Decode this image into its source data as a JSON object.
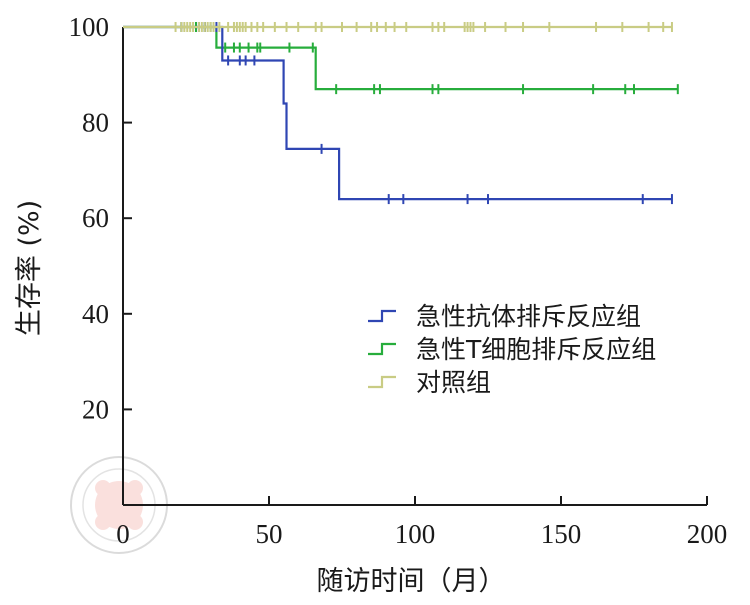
{
  "chart_data": {
    "type": "line",
    "subtype": "kaplan-meier survival curve",
    "title": "",
    "xlabel": "随访时间（月）",
    "ylabel": "生存率 (%)",
    "xlim": [
      0,
      200
    ],
    "ylim": [
      0,
      100
    ],
    "xticks": [
      "0",
      "50",
      "100",
      "150",
      "200"
    ],
    "yticks": [
      "20",
      "40",
      "60",
      "80",
      "100"
    ],
    "grid": false,
    "legend_position": "right",
    "series": [
      {
        "name": "急性抗体排斥反应组",
        "color": "#2f46b3",
        "steps": [
          [
            0,
            100
          ],
          [
            34,
            100
          ],
          [
            34,
            93
          ],
          [
            55,
            93
          ],
          [
            55,
            84
          ],
          [
            56,
            84
          ],
          [
            56,
            74.5
          ],
          [
            74,
            74.5
          ],
          [
            74,
            64
          ],
          [
            188,
            64
          ]
        ],
        "censored": [
          [
            20,
            100
          ],
          [
            26,
            100
          ],
          [
            28,
            100
          ],
          [
            32,
            100
          ],
          [
            36,
            93
          ],
          [
            40,
            93
          ],
          [
            42,
            93
          ],
          [
            45,
            93
          ],
          [
            68,
            74.5
          ],
          [
            91,
            64
          ],
          [
            96,
            64
          ],
          [
            118,
            64
          ],
          [
            125,
            64
          ],
          [
            178,
            64
          ],
          [
            188,
            64
          ]
        ]
      },
      {
        "name": "急性T细胞排斥反应组",
        "color": "#27ad3c",
        "steps": [
          [
            0,
            100
          ],
          [
            32,
            100
          ],
          [
            32,
            95.7
          ],
          [
            66,
            95.7
          ],
          [
            66,
            87
          ],
          [
            190,
            87
          ]
        ],
        "censored": [
          [
            20,
            100
          ],
          [
            25,
            100
          ],
          [
            28,
            100
          ],
          [
            30,
            100
          ],
          [
            35,
            95.7
          ],
          [
            38,
            95.7
          ],
          [
            40,
            95.7
          ],
          [
            43,
            95.7
          ],
          [
            46,
            95.7
          ],
          [
            47,
            95.7
          ],
          [
            57,
            95.7
          ],
          [
            65,
            95.7
          ],
          [
            73,
            87
          ],
          [
            86,
            87
          ],
          [
            88,
            87
          ],
          [
            106,
            87
          ],
          [
            108,
            87
          ],
          [
            137,
            87
          ],
          [
            161,
            87
          ],
          [
            172,
            87
          ],
          [
            175,
            87
          ],
          [
            190,
            87
          ]
        ]
      },
      {
        "name": "对照组",
        "color": "#c9cc84",
        "steps": [
          [
            0,
            100
          ],
          [
            188,
            100
          ]
        ],
        "censored": [
          [
            18,
            100
          ],
          [
            20,
            100
          ],
          [
            21,
            100
          ],
          [
            22,
            100
          ],
          [
            23,
            100
          ],
          [
            24,
            100
          ],
          [
            26,
            100
          ],
          [
            27,
            100
          ],
          [
            28,
            100
          ],
          [
            29,
            100
          ],
          [
            30,
            100
          ],
          [
            31,
            100
          ],
          [
            33,
            100
          ],
          [
            36,
            100
          ],
          [
            38,
            100
          ],
          [
            39,
            100
          ],
          [
            40,
            100
          ],
          [
            41,
            100
          ],
          [
            42,
            100
          ],
          [
            44,
            100
          ],
          [
            46,
            100
          ],
          [
            48,
            100
          ],
          [
            52,
            100
          ],
          [
            56,
            100
          ],
          [
            60,
            100
          ],
          [
            66,
            100
          ],
          [
            68,
            100
          ],
          [
            75,
            100
          ],
          [
            80,
            100
          ],
          [
            85,
            100
          ],
          [
            87,
            100
          ],
          [
            90,
            100
          ],
          [
            93,
            100
          ],
          [
            97,
            100
          ],
          [
            106,
            100
          ],
          [
            108,
            100
          ],
          [
            110,
            100
          ],
          [
            117,
            100
          ],
          [
            118,
            100
          ],
          [
            119,
            100
          ],
          [
            120,
            100
          ],
          [
            124,
            100
          ],
          [
            131,
            100
          ],
          [
            137,
            100
          ],
          [
            146,
            100
          ],
          [
            162,
            100
          ],
          [
            171,
            100
          ],
          [
            180,
            100
          ],
          [
            185,
            100
          ],
          [
            188,
            100
          ]
        ]
      }
    ]
  }
}
